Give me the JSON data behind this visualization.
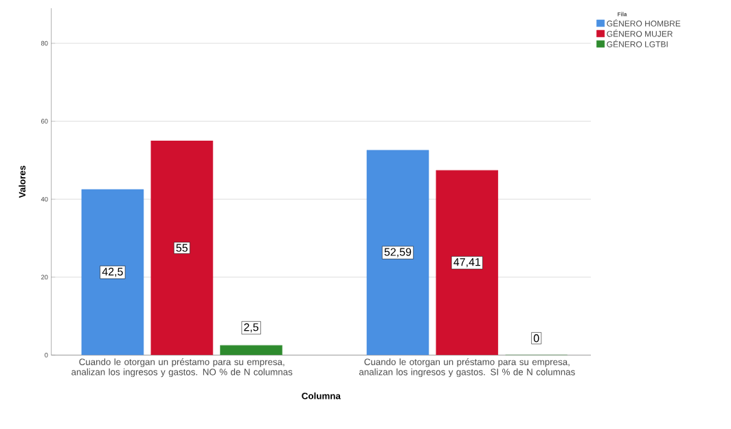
{
  "chart_data": {
    "type": "bar",
    "xlabel": "Columna",
    "ylabel": "Valores",
    "legend_title": "Fila",
    "legend": "top right",
    "grid": "y",
    "categories": [
      "Cuando le otorgan un préstamo para su empresa, analizan los ingresos y gastos. NO % de N columnas",
      "Cuando le otorgan un préstamo para su empresa, analizan los ingresos y gastos. SI % de N columnas"
    ],
    "ylim": [
      0,
      89
    ],
    "yticks": [
      0,
      20,
      40,
      60,
      80
    ],
    "series": [
      {
        "name": "GÉNERO HOMBRE",
        "color": "#4a90e2",
        "values": [
          42.5,
          52.59
        ],
        "value_labels": [
          "42,5",
          "52,59"
        ]
      },
      {
        "name": "GÉNERO MUJER",
        "color": "#d0102e",
        "values": [
          55,
          47.41
        ],
        "value_labels": [
          "55",
          "47,41"
        ]
      },
      {
        "name": "GÉNERO LGTBI",
        "color": "#2e8b2e",
        "values": [
          2.5,
          0
        ],
        "value_labels": [
          "2,5",
          "0"
        ]
      }
    ]
  }
}
